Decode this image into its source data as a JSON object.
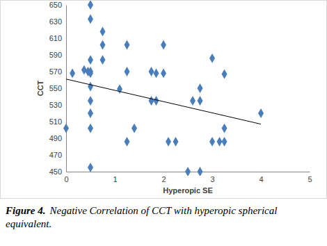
{
  "chart_data": {
    "type": "scatter",
    "x_label": "Hyperopic SE",
    "y_label": "CCT",
    "xlim": [
      0,
      5
    ],
    "ylim": [
      450,
      650
    ],
    "xticks": [
      0,
      1,
      2,
      3,
      4,
      5
    ],
    "yticks": [
      450,
      470,
      490,
      510,
      530,
      550,
      570,
      590,
      610,
      630,
      650
    ],
    "color": "#4a7ebb",
    "marker": "diamond",
    "x": [
      0,
      0.13,
      0.37,
      0.45,
      0.5,
      0.5,
      0.5,
      0.5,
      0.5,
      0.5,
      0.5,
      0.5,
      0.5,
      0.5,
      0.75,
      0.75,
      0.75,
      1.1,
      1.25,
      1.25,
      1.25,
      1.4,
      1.75,
      1.75,
      1.85,
      1.85,
      2,
      2,
      2.1,
      2.25,
      2.5,
      2.6,
      2.75,
      2.75,
      2.75,
      3,
      3,
      3.15,
      3.25,
      3.25,
      3.25,
      4
    ],
    "values": [
      502,
      568,
      572,
      570,
      650,
      633,
      584,
      570,
      568,
      552,
      535,
      520,
      502,
      455,
      618,
      602,
      584,
      549,
      602,
      570,
      486,
      502,
      570,
      535,
      568,
      535,
      602,
      568,
      486,
      486,
      450,
      535,
      550,
      535,
      450,
      586,
      486,
      486,
      567,
      502,
      486,
      520
    ],
    "trendline": {
      "x": [
        0,
        4
      ],
      "values": [
        561,
        507
      ],
      "color": "#000000"
    }
  },
  "caption": {
    "label": "Figure 4.",
    "text": "Negative Correlation of CCT with hyperopic spherical equivalent."
  }
}
